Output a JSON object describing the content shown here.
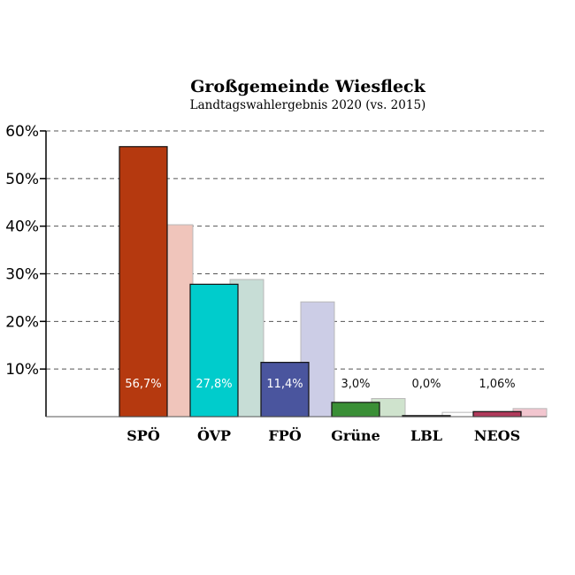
{
  "chart_data": {
    "type": "bar",
    "title": "Großgemeinde Wiesfleck",
    "subtitle": "Landtagswahlergebnis 2020 (vs. 2015)",
    "ylim": [
      0,
      60
    ],
    "yticks": [
      "10%",
      "20%",
      "30%",
      "40%",
      "50%",
      "60%"
    ],
    "grid": true,
    "categories": [
      "SPÖ",
      "ÖVP",
      "FPÖ",
      "Grüne",
      "LBL",
      "NEOS"
    ],
    "series": [
      {
        "values": [
          56.7,
          27.8,
          11.4,
          3.0,
          0.0,
          1.06
        ],
        "colors": [
          "#b5390f",
          "#00cccc",
          "#4a559e",
          "#3a8f36",
          "#ffffff",
          "#b03a5b"
        ]
      },
      {
        "values": [
          40.3,
          28.8,
          24.1,
          3.8,
          0.9,
          1.7
        ],
        "colors": [
          "#f0c5bb",
          "#c7ddd6",
          "#cccde6",
          "#cfe3cd",
          "#ffffff",
          "#f2c6cf"
        ]
      }
    ],
    "data_labels": [
      "56,7%",
      "27,8%",
      "11,4%",
      "3,0%",
      "0,0%",
      "1,06%"
    ]
  }
}
